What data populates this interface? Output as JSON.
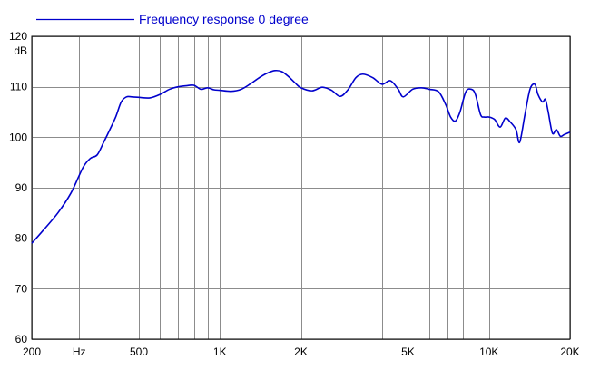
{
  "chart_data": {
    "type": "line",
    "title": "",
    "xlabel": "",
    "ylabel": "",
    "y_unit_label": "dB",
    "x_scale": "log",
    "xlim": [
      200,
      20000
    ],
    "ylim": [
      60,
      120
    ],
    "grid": true,
    "legend_position": "top-left",
    "x_tick_labels": [
      {
        "value": 200,
        "label": "200"
      },
      {
        "value": 300,
        "label": "Hz"
      },
      {
        "value": 500,
        "label": "500"
      },
      {
        "value": 1000,
        "label": "1K"
      },
      {
        "value": 2000,
        "label": "2K"
      },
      {
        "value": 5000,
        "label": "5K"
      },
      {
        "value": 10000,
        "label": "10K"
      },
      {
        "value": 20000,
        "label": "20K"
      }
    ],
    "x_gridlines": [
      200,
      300,
      400,
      500,
      600,
      700,
      800,
      900,
      1000,
      2000,
      3000,
      4000,
      5000,
      6000,
      7000,
      8000,
      9000,
      10000,
      20000
    ],
    "y_ticks": [
      60,
      70,
      80,
      90,
      100,
      110,
      120
    ],
    "series": [
      {
        "name": "Frequency response 0 degree",
        "color": "#0000cc",
        "x": [
          200,
          220,
          250,
          280,
          310,
          330,
          350,
          370,
          390,
          410,
          430,
          450,
          470,
          500,
          550,
          600,
          650,
          700,
          750,
          800,
          850,
          900,
          950,
          1000,
          1100,
          1200,
          1300,
          1400,
          1500,
          1600,
          1700,
          1800,
          1900,
          2000,
          2200,
          2400,
          2600,
          2800,
          3000,
          3200,
          3400,
          3700,
          4000,
          4300,
          4600,
          4800,
          5200,
          5600,
          6000,
          6500,
          6900,
          7200,
          7500,
          7800,
          8200,
          8600,
          8900,
          9300,
          9600,
          10000,
          10500,
          11000,
          11500,
          12000,
          12600,
          13000,
          13600,
          14200,
          14800,
          15200,
          15800,
          16200,
          16600,
          17200,
          17800,
          18400,
          19000,
          20000
        ],
        "values": [
          79,
          81.5,
          85,
          89,
          94,
          95.8,
          96.5,
          99,
          101.5,
          104,
          107,
          108,
          108,
          107.9,
          107.8,
          108.5,
          109.5,
          110,
          110.2,
          110.3,
          109.5,
          109.8,
          109.4,
          109.3,
          109.1,
          109.5,
          110.6,
          111.8,
          112.7,
          113.2,
          113,
          112,
          110.8,
          109.8,
          109.2,
          109.9,
          109.3,
          108.1,
          109.5,
          111.8,
          112.5,
          111.8,
          110.5,
          111.2,
          109.5,
          108,
          109.5,
          109.8,
          109.5,
          109,
          106.5,
          104,
          103.2,
          105,
          109,
          109.5,
          108.5,
          104.5,
          104,
          104,
          103.5,
          102,
          103.8,
          103,
          101.5,
          99,
          104.5,
          109.5,
          110.5,
          108.5,
          107,
          107.5,
          105,
          100.8,
          101.5,
          100.2,
          100.5,
          101
        ]
      }
    ]
  }
}
